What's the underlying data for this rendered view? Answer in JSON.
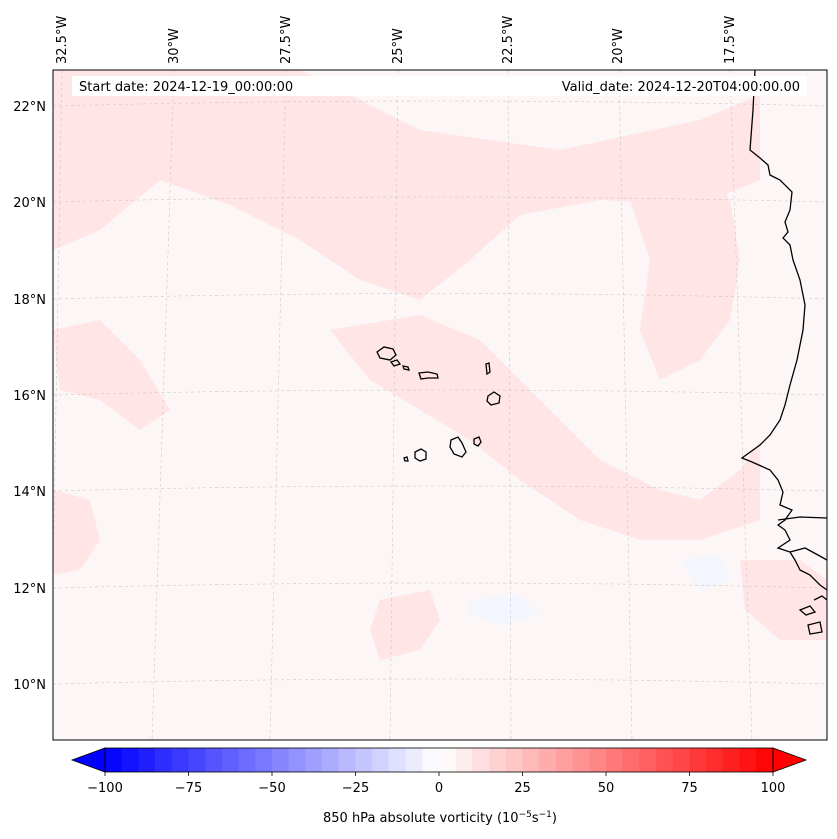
{
  "map": {
    "start_date": "Start date: 2024-12-19_00:00:00",
    "valid_date": "Valid_date: 2024-12-20T04:00:00.00",
    "lon_labels": [
      "32.5°W",
      "30°W",
      "27.5°W",
      "25°W",
      "22.5°W",
      "20°W",
      "17.5°W"
    ],
    "lat_labels": [
      "22°N",
      "20°N",
      "18°N",
      "16°N",
      "14°N",
      "12°N",
      "10°N"
    ],
    "background_color": "#fdf6f6",
    "vorticity_patch_color": "#ffe5e5",
    "weak_negative_color": "#f3f5ff",
    "coastline_color": "#000000",
    "gridline_color": "#c8c8c8"
  },
  "colorbar": {
    "label": "850 hPa absolute vorticity (10",
    "label_exp1": "−5",
    "label_mid": "s",
    "label_exp2": "−1",
    "label_end": ")",
    "ticks": [
      "−100",
      "−75",
      "−50",
      "−25",
      "0",
      "25",
      "50",
      "75",
      "100"
    ],
    "min_color": "#0000ff",
    "mid_color": "#ffffff",
    "max_color": "#ff0000",
    "range": [
      -100,
      100
    ],
    "extend": "both"
  }
}
